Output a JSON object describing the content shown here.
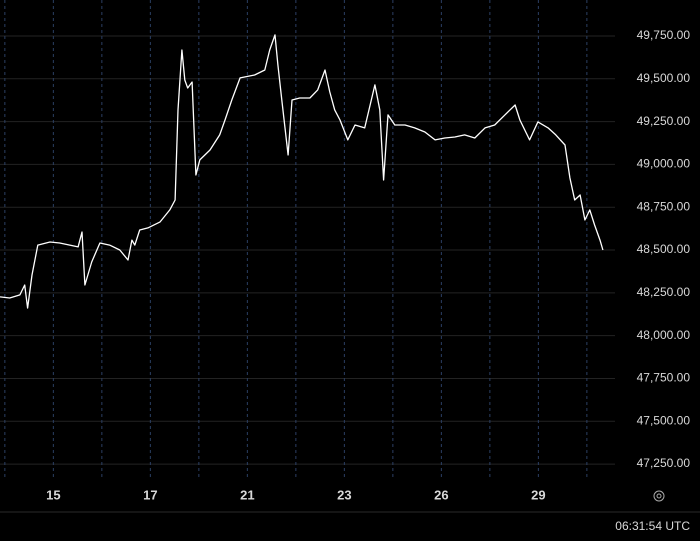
{
  "chart_data": {
    "type": "line",
    "x": [
      -0.1,
      0.1,
      0.31,
      0.41,
      0.47,
      0.56,
      0.68,
      0.93,
      1.13,
      1.34,
      1.51,
      1.59,
      1.65,
      1.79,
      1.96,
      2.16,
      2.37,
      2.54,
      2.62,
      2.68,
      2.78,
      2.95,
      3.2,
      3.4,
      3.51,
      3.57,
      3.65,
      3.71,
      3.77,
      3.86,
      3.94,
      4.02,
      4.23,
      4.43,
      4.54,
      4.68,
      4.85,
      5.15,
      5.36,
      5.46,
      5.57,
      5.63,
      5.71,
      5.84,
      5.92,
      6.08,
      6.29,
      6.45,
      6.6,
      6.7,
      6.8,
      6.91,
      7.07,
      7.22,
      7.42,
      7.63,
      7.73,
      7.81,
      7.9,
      8.04,
      8.25,
      8.45,
      8.66,
      8.87,
      9.07,
      9.28,
      9.48,
      9.69,
      9.9,
      10.1,
      10.31,
      10.52,
      10.62,
      10.82,
      10.99,
      11.2,
      11.36,
      11.55,
      11.65,
      11.75,
      11.86,
      11.96,
      12.06,
      12.16,
      12.27,
      12.33
    ],
    "series": [
      {
        "color": "#ffffff",
        "values": [
          48226,
          48220,
          48238,
          48296,
          48161,
          48354,
          48529,
          48547,
          48541,
          48529,
          48518,
          48605,
          48296,
          48430,
          48541,
          48529,
          48500,
          48442,
          48558,
          48529,
          48617,
          48629,
          48664,
          48734,
          48792,
          49318,
          49668,
          49493,
          49446,
          49481,
          48938,
          49026,
          49084,
          49172,
          49259,
          49376,
          49505,
          49522,
          49551,
          49668,
          49756,
          49581,
          49376,
          49055,
          49376,
          49388,
          49388,
          49435,
          49551,
          49423,
          49318,
          49259,
          49143,
          49230,
          49213,
          49464,
          49318,
          48909,
          49289,
          49230,
          49230,
          49213,
          49189,
          49143,
          49154,
          49160,
          49172,
          49154,
          49213,
          49230,
          49289,
          49347,
          49259,
          49143,
          49248,
          49213,
          49172,
          49113,
          48921,
          48792,
          48821,
          48675,
          48734,
          48646,
          48558,
          48500
        ]
      }
    ],
    "xlim": [
      -0.1,
      12.58
    ],
    "xticks": [
      {
        "value": 1,
        "label": "15"
      },
      {
        "value": 3,
        "label": "17"
      },
      {
        "value": 5,
        "label": "21"
      },
      {
        "value": 7,
        "label": "23"
      },
      {
        "value": 9,
        "label": "26"
      },
      {
        "value": 11,
        "label": "29"
      }
    ],
    "xgrid": [
      0,
      1,
      2,
      3,
      4,
      5,
      6,
      7,
      8,
      9,
      10,
      11,
      12
    ],
    "ylim": [
      47157,
      49960
    ],
    "yticks": [
      {
        "value": 49750,
        "label": "49,750.00"
      },
      {
        "value": 49500,
        "label": "49,500.00"
      },
      {
        "value": 49250,
        "label": "49,250.00"
      },
      {
        "value": 49000,
        "label": "49,000.00"
      },
      {
        "value": 48750,
        "label": "48,750.00"
      },
      {
        "value": 48500,
        "label": "48,500.00"
      },
      {
        "value": 48250,
        "label": "48,250.00"
      },
      {
        "value": 48000,
        "label": "48,000.00"
      },
      {
        "value": 47750,
        "label": "47,750.00"
      },
      {
        "value": 47500,
        "label": "47,500.00"
      },
      {
        "value": 47250,
        "label": "47,250.00"
      }
    ],
    "grid": true,
    "time": "06:31:54 UTC"
  }
}
